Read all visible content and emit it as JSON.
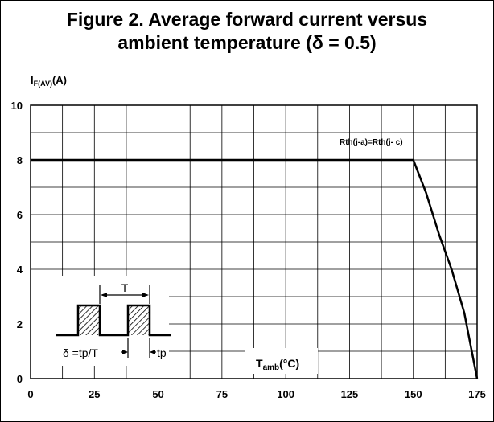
{
  "chart_data": {
    "type": "line",
    "title_line1": "Figure 2. Average forward current versus",
    "title_line2": "ambient temperature (δ = 0.5)",
    "ylabel_main": "I",
    "ylabel_sub": "F(AV)",
    "ylabel_unit": "(A)",
    "xlabel_main": "T",
    "xlabel_sub": "amb",
    "xlabel_unit": "(°C)",
    "xlim": [
      0,
      175
    ],
    "ylim": [
      0,
      10
    ],
    "x_ticks": [
      0,
      25,
      50,
      75,
      100,
      125,
      150,
      175
    ],
    "y_ticks": [
      0,
      2,
      4,
      6,
      8,
      10
    ],
    "grid": true,
    "series": [
      {
        "x": [
          0,
          145,
          150,
          155,
          160,
          165,
          170,
          175
        ],
        "y": [
          8,
          8,
          8,
          6.8,
          5.3,
          4.0,
          2.4,
          0
        ]
      }
    ],
    "annotation_rth": {
      "a": "Rth(j-a)",
      "eq": "=",
      "b": "Rth(j- c)"
    },
    "inset": {
      "period_label": "T",
      "duty_label": "δ =tp/T",
      "tp_label": "tp"
    }
  }
}
